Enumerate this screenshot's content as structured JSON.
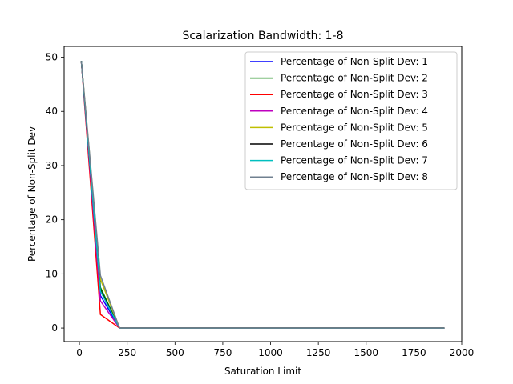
{
  "chart_data": {
    "type": "line",
    "title": "Scalarization Bandwidth: 1-8",
    "xlabel": "Saturation Limit",
    "ylabel": "Percentage of Non-Split Dev",
    "xlim": [
      -80,
      2000
    ],
    "ylim": [
      -2.5,
      52
    ],
    "xticks": [
      0,
      250,
      500,
      750,
      1000,
      1250,
      1500,
      1750,
      2000
    ],
    "yticks": [
      0,
      10,
      20,
      30,
      40,
      50
    ],
    "grid": false,
    "legend_position": "upper-right",
    "x": [
      10,
      110,
      210,
      310,
      410,
      510,
      610,
      710,
      810,
      910,
      1010,
      1110,
      1210,
      1310,
      1410,
      1510,
      1610,
      1710,
      1810,
      1910
    ],
    "series": [
      {
        "name": "Percentage of Non-Split Dev: 1",
        "color": "#0000ff",
        "values": [
          49.3,
          6.0,
          0,
          0,
          0,
          0,
          0,
          0,
          0,
          0,
          0,
          0,
          0,
          0,
          0,
          0,
          0,
          0,
          0,
          0
        ]
      },
      {
        "name": "Percentage of Non-Split Dev: 2",
        "color": "#008000",
        "values": [
          49.3,
          7.5,
          0,
          0,
          0,
          0,
          0,
          0,
          0,
          0,
          0,
          0,
          0,
          0,
          0,
          0,
          0,
          0,
          0,
          0
        ]
      },
      {
        "name": "Percentage of Non-Split Dev: 3",
        "color": "#ff0000",
        "values": [
          49.3,
          2.5,
          0,
          0,
          0,
          0,
          0,
          0,
          0,
          0,
          0,
          0,
          0,
          0,
          0,
          0,
          0,
          0,
          0,
          0
        ]
      },
      {
        "name": "Percentage of Non-Split Dev: 4",
        "color": "#bf00bf",
        "values": [
          49.3,
          5.0,
          0,
          0,
          0,
          0,
          0,
          0,
          0,
          0,
          0,
          0,
          0,
          0,
          0,
          0,
          0,
          0,
          0,
          0
        ]
      },
      {
        "name": "Percentage of Non-Split Dev: 5",
        "color": "#bfbf00",
        "values": [
          49.3,
          9.0,
          0,
          0,
          0,
          0,
          0,
          0,
          0,
          0,
          0,
          0,
          0,
          0,
          0,
          0,
          0,
          0,
          0,
          0
        ]
      },
      {
        "name": "Percentage of Non-Split Dev: 6",
        "color": "#000000",
        "values": [
          49.3,
          7.0,
          0,
          0,
          0,
          0,
          0,
          0,
          0,
          0,
          0,
          0,
          0,
          0,
          0,
          0,
          0,
          0,
          0,
          0
        ]
      },
      {
        "name": "Percentage of Non-Split Dev: 7",
        "color": "#00bfbf",
        "values": [
          49.3,
          6.8,
          0,
          0,
          0,
          0,
          0,
          0,
          0,
          0,
          0,
          0,
          0,
          0,
          0,
          0,
          0,
          0,
          0,
          0
        ]
      },
      {
        "name": "Percentage of Non-Split Dev: 8",
        "color": "#708090",
        "values": [
          49.3,
          9.7,
          0,
          0,
          0,
          0,
          0,
          0,
          0,
          0,
          0,
          0,
          0,
          0,
          0,
          0,
          0,
          0,
          0,
          0
        ]
      }
    ]
  }
}
